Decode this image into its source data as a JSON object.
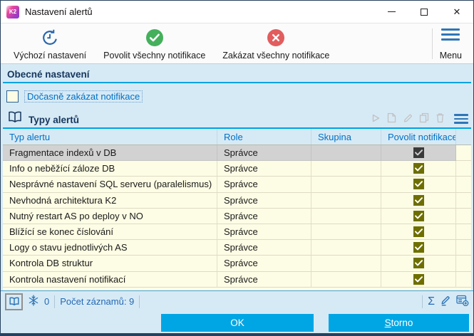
{
  "window": {
    "title": "Nastavení alertů",
    "icon_text": "K2"
  },
  "toolbar": {
    "buttons": [
      {
        "id": "default-settings",
        "label": "Výchozí nastavení",
        "icon": "reset-clock-icon"
      },
      {
        "id": "enable-all-notifications",
        "label": "Povolit všechny notifikace",
        "icon": "check-circle-icon"
      },
      {
        "id": "disable-all-notifications",
        "label": "Zakázat všechny notifikace",
        "icon": "x-circle-icon"
      }
    ],
    "menu": {
      "label": "Menu",
      "icon": "hamburger-icon"
    }
  },
  "general_section": {
    "title": "Obecné nastavení",
    "checkbox": {
      "label": "Dočasně zakázat notifikace",
      "checked": false
    }
  },
  "alerts_section": {
    "title": "Typy alertů",
    "icon": "open-book-icon"
  },
  "table": {
    "columns": [
      "Typ alertu",
      "Role",
      "Skupina",
      "Povolit notifikace"
    ],
    "rows": [
      {
        "typ_alertu": "Fragmentace indexů v DB",
        "role": "Správce",
        "skupina": "",
        "povolit_notifikace": true,
        "selected": true
      },
      {
        "typ_alertu": "Info o neběžící záloze DB",
        "role": "Správce",
        "skupina": "",
        "povolit_notifikace": true,
        "selected": false
      },
      {
        "typ_alertu": "Nesprávné nastavení SQL serveru (paralelismus)",
        "role": "Správce",
        "skupina": "",
        "povolit_notifikace": true,
        "selected": false
      },
      {
        "typ_alertu": "Nevhodná architektura K2",
        "role": "Správce",
        "skupina": "",
        "povolit_notifikace": true,
        "selected": false
      },
      {
        "typ_alertu": "Nutný restart AS po deploy v NO",
        "role": "Správce",
        "skupina": "",
        "povolit_notifikace": true,
        "selected": false
      },
      {
        "typ_alertu": "Blížící se konec číslování",
        "role": "Správce",
        "skupina": "",
        "povolit_notifikace": true,
        "selected": false
      },
      {
        "typ_alertu": "Logy o stavu jednotlivých AS",
        "role": "Správce",
        "skupina": "",
        "povolit_notifikace": true,
        "selected": false
      },
      {
        "typ_alertu": "Kontrola DB struktur",
        "role": "Správce",
        "skupina": "",
        "povolit_notifikace": true,
        "selected": false
      },
      {
        "typ_alertu": "Kontrola nastavení notifikací",
        "role": "Správce",
        "skupina": "",
        "povolit_notifikace": true,
        "selected": false
      }
    ]
  },
  "statusbar": {
    "frozen_count": "0",
    "records_label": "Počet záznamů: 9"
  },
  "footer": {
    "ok_label": "OK",
    "storno_label": "Storno"
  },
  "colors": {
    "accent_cyan": "#00a3e0",
    "button_cyan": "#00a6e4",
    "body_blue": "#d6eaf6",
    "table_cream": "#fdfce4",
    "selected_row_gray": "#d2d2d2",
    "checkbox_olive": "#6e6e00",
    "link_blue": "#0070c4",
    "header_navy": "#17365d",
    "icon_green": "#44b05c",
    "icon_red": "#e25d5e"
  }
}
